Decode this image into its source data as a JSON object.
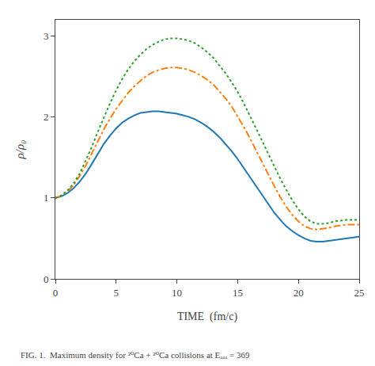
{
  "chart_data": {
    "type": "line",
    "xlabel": "TIME  (fm/c)",
    "ylabel": "ρ/ρ₀",
    "xlim": [
      0,
      25
    ],
    "ylim": [
      0,
      3.2
    ],
    "xticks": [
      0,
      5,
      10,
      15,
      20,
      25
    ],
    "yticks": [
      0,
      1,
      2,
      3
    ],
    "grid": false,
    "x": [
      0,
      0.5,
      1.0,
      1.5,
      2.0,
      2.5,
      3.0,
      3.5,
      4.0,
      4.5,
      5.0,
      5.5,
      6.0,
      6.5,
      7.0,
      7.5,
      8.0,
      8.5,
      9.0,
      9.5,
      10.0,
      10.5,
      11.0,
      11.5,
      12.0,
      12.5,
      13.0,
      13.5,
      14.0,
      14.5,
      15.0,
      15.5,
      16.0,
      16.5,
      17.0,
      17.5,
      18.0,
      18.5,
      19.0,
      19.5,
      20.0,
      20.5,
      21.0,
      21.5,
      22.0,
      22.5,
      23.0,
      23.5,
      24.0,
      24.5,
      25.0
    ],
    "series": [
      {
        "line_style": "solid",
        "values": [
          1.0,
          1.02,
          1.06,
          1.12,
          1.2,
          1.3,
          1.42,
          1.55,
          1.67,
          1.77,
          1.86,
          1.93,
          1.98,
          2.02,
          2.05,
          2.06,
          2.07,
          2.07,
          2.06,
          2.05,
          2.04,
          2.02,
          2.0,
          1.97,
          1.93,
          1.88,
          1.82,
          1.75,
          1.67,
          1.58,
          1.48,
          1.37,
          1.26,
          1.14,
          1.03,
          0.92,
          0.82,
          0.73,
          0.65,
          0.59,
          0.54,
          0.5,
          0.47,
          0.46,
          0.46,
          0.47,
          0.48,
          0.49,
          0.5,
          0.51,
          0.52
        ]
      },
      {
        "line_style": "dashdot",
        "values": [
          1.0,
          1.03,
          1.08,
          1.16,
          1.27,
          1.4,
          1.55,
          1.7,
          1.85,
          1.98,
          2.1,
          2.2,
          2.3,
          2.38,
          2.45,
          2.51,
          2.55,
          2.58,
          2.6,
          2.61,
          2.61,
          2.6,
          2.58,
          2.55,
          2.51,
          2.46,
          2.4,
          2.32,
          2.23,
          2.13,
          2.01,
          1.88,
          1.74,
          1.59,
          1.44,
          1.29,
          1.15,
          1.01,
          0.89,
          0.79,
          0.71,
          0.65,
          0.62,
          0.61,
          0.62,
          0.63,
          0.65,
          0.66,
          0.67,
          0.67,
          0.67
        ]
      },
      {
        "line_style": "dotted",
        "values": [
          1.0,
          1.03,
          1.09,
          1.18,
          1.3,
          1.46,
          1.63,
          1.82,
          2.0,
          2.17,
          2.33,
          2.47,
          2.59,
          2.69,
          2.77,
          2.84,
          2.89,
          2.93,
          2.96,
          2.97,
          2.97,
          2.96,
          2.94,
          2.91,
          2.86,
          2.8,
          2.73,
          2.64,
          2.54,
          2.43,
          2.31,
          2.17,
          2.02,
          1.87,
          1.71,
          1.55,
          1.39,
          1.24,
          1.1,
          0.97,
          0.86,
          0.77,
          0.71,
          0.68,
          0.68,
          0.69,
          0.71,
          0.72,
          0.73,
          0.73,
          0.73
        ]
      }
    ],
    "annotations": [
      "FIG. 1.  Maximum density for ²⁰Ca + ²⁰Ca collisions at Eₐₐₐ = 369"
    ]
  }
}
